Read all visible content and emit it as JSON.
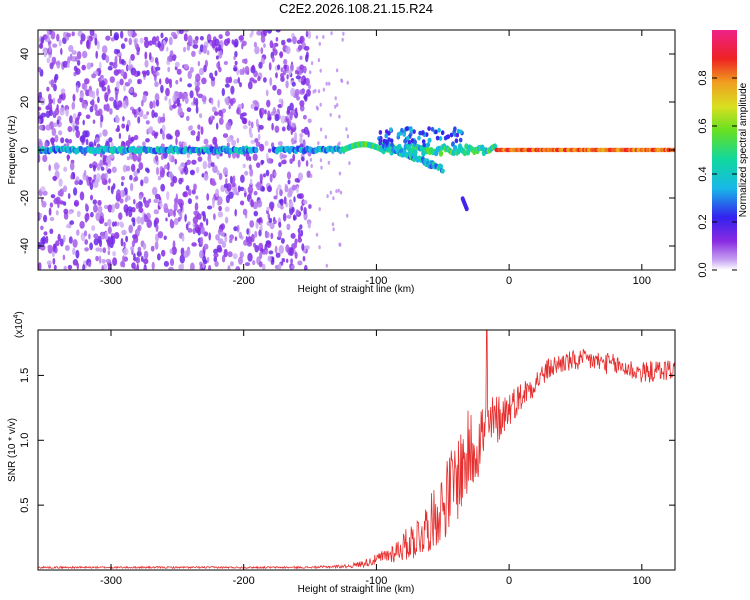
{
  "title": "C2E2.2026.108.21.15.R24",
  "chart_data": [
    {
      "type": "heatmap",
      "title": "C2E2.2026.108.21.15.R24",
      "xlabel": "Height of straight line (km)",
      "ylabel": "Frequency (Hz)",
      "xlim": [
        -355,
        125
      ],
      "ylim": [
        -50,
        50
      ],
      "xticks": [
        -300,
        -200,
        -100,
        0,
        100
      ],
      "xtick_labels": [
        "-300",
        "-200",
        "-100",
        "0",
        "100"
      ],
      "yticks": [
        -40,
        -20,
        0,
        20,
        40
      ],
      "ytick_labels": [
        "-40",
        "-20",
        "0",
        "20",
        "40"
      ],
      "colorbar": {
        "label": "Normalized spectral amplitude",
        "range": [
          0,
          1
        ],
        "ticks": [
          0.0,
          0.2,
          0.4,
          0.6,
          0.8
        ],
        "tick_labels": [
          "0.0",
          "0.2",
          "0.4",
          "0.6",
          "0.8"
        ],
        "colormap": "rainbow (white/violet low, red/magenta high)"
      },
      "features": {
        "scatter_region_x": [
          -355,
          -150
        ],
        "scatter_amplitude": 0.15,
        "main_line_freq_hz": 0,
        "main_line_amplitude": [
          0.2,
          0.8
        ],
        "bump_near_x": -105,
        "bump_freq_hz": 3,
        "branch_x": [
          -95,
          -50
        ],
        "branch_freq_hz": [
          2,
          -8
        ],
        "isolated_blob_x": -35,
        "isolated_blob_freq_hz": -22,
        "strong_line_x": [
          -10,
          125
        ],
        "strong_line_amplitude": 0.9
      },
      "colors": {
        "low": "#9b59e6",
        "mid": "#22c4d8",
        "high": "#e62020"
      }
    },
    {
      "type": "line",
      "xlabel": "Height of straight line (km)",
      "ylabel": "SNR (10 * v/v)",
      "scale_label": "(x10",
      "scale_exponent": "4",
      "xlim": [
        -355,
        125
      ],
      "ylim": [
        0,
        1.85
      ],
      "xticks": [
        -300,
        -200,
        -100,
        0,
        100
      ],
      "xtick_labels": [
        "-300",
        "-200",
        "-100",
        "0",
        "100"
      ],
      "yticks": [
        0.5,
        1.0,
        1.5
      ],
      "ytick_labels": [
        "0.5",
        "1.0",
        "1.5"
      ],
      "series": [
        {
          "name": "SNR",
          "color": "#e62e2e",
          "x": [
            -355,
            -300,
            -250,
            -200,
            -150,
            -120,
            -110,
            -100,
            -90,
            -80,
            -70,
            -60,
            -50,
            -40,
            -30,
            -20,
            -10,
            0,
            10,
            20,
            30,
            40,
            60,
            80,
            100,
            125
          ],
          "y": [
            0.02,
            0.02,
            0.02,
            0.02,
            0.02,
            0.03,
            0.05,
            0.08,
            0.12,
            0.18,
            0.25,
            0.35,
            0.5,
            0.7,
            0.9,
            1.05,
            1.15,
            1.25,
            1.35,
            1.45,
            1.55,
            1.6,
            1.62,
            1.58,
            1.52,
            1.55
          ],
          "noise": [
            0.005,
            0.005,
            0.005,
            0.005,
            0.005,
            0.01,
            0.02,
            0.03,
            0.05,
            0.08,
            0.12,
            0.15,
            0.2,
            0.25,
            0.25,
            0.2,
            0.15,
            0.1,
            0.08,
            0.07,
            0.06,
            0.06,
            0.06,
            0.06,
            0.06,
            0.06
          ],
          "spike": {
            "x": -17,
            "y": 1.85
          }
        }
      ]
    }
  ]
}
